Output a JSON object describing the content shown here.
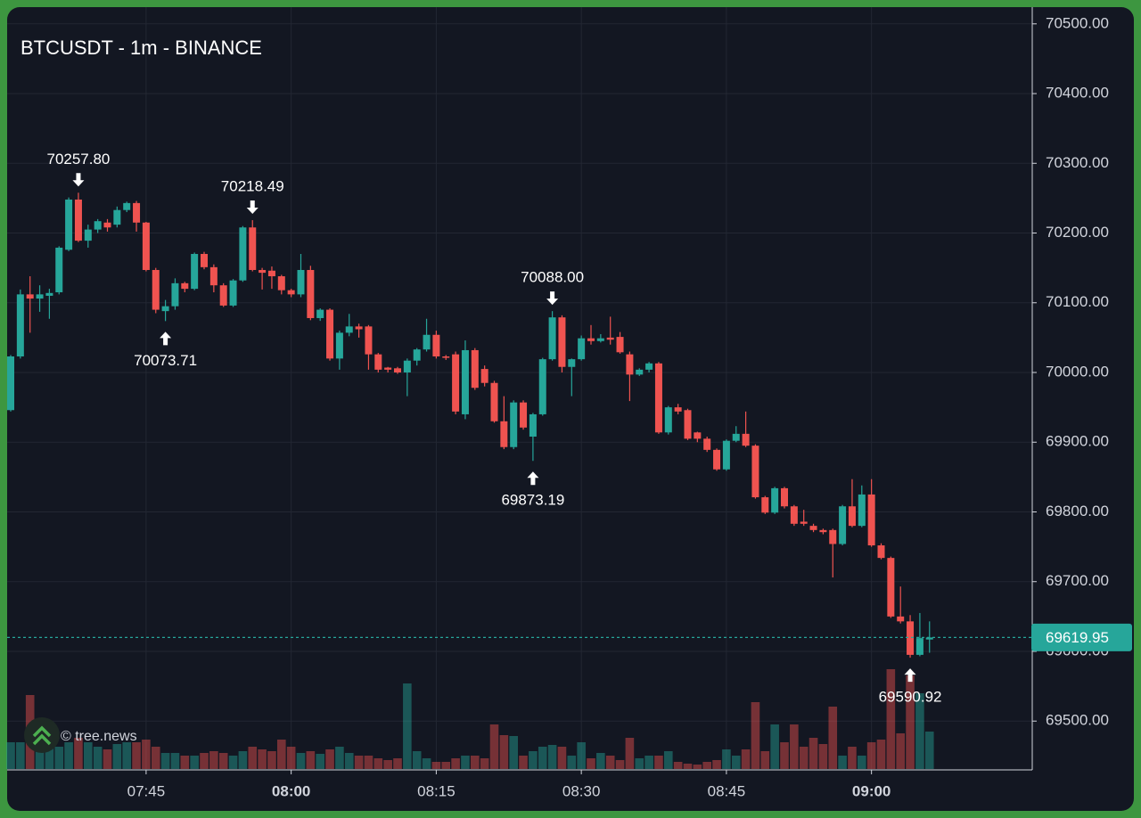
{
  "chart_data": {
    "type": "candlestick",
    "title": "BTCUSDT - 1m - BINANCE",
    "x": [
      "07:31",
      "07:32",
      "07:33",
      "07:34",
      "07:35",
      "07:36",
      "07:37",
      "07:38",
      "07:39",
      "07:40",
      "07:41",
      "07:42",
      "07:43",
      "07:44",
      "07:45",
      "07:46",
      "07:47",
      "07:48",
      "07:49",
      "07:50",
      "07:51",
      "07:52",
      "07:53",
      "07:54",
      "07:55",
      "07:56",
      "07:57",
      "07:58",
      "07:59",
      "08:00",
      "08:01",
      "08:02",
      "08:03",
      "08:04",
      "08:05",
      "08:06",
      "08:07",
      "08:08",
      "08:09",
      "08:10",
      "08:11",
      "08:12",
      "08:13",
      "08:14",
      "08:15",
      "08:16",
      "08:17",
      "08:18",
      "08:19",
      "08:20",
      "08:21",
      "08:22",
      "08:23",
      "08:24",
      "08:25",
      "08:26",
      "08:27",
      "08:28",
      "08:29",
      "08:30",
      "08:31",
      "08:32",
      "08:33",
      "08:34",
      "08:35",
      "08:36",
      "08:37",
      "08:38",
      "08:39",
      "08:40",
      "08:41",
      "08:42",
      "08:43",
      "08:44",
      "08:45",
      "08:46",
      "08:47",
      "08:48",
      "08:49",
      "08:50",
      "08:51",
      "08:52",
      "08:53",
      "08:54",
      "08:55",
      "08:56",
      "08:57",
      "08:58",
      "08:59",
      "09:00",
      "09:01",
      "09:02",
      "09:03",
      "09:04",
      "09:05",
      "09:06"
    ],
    "open": [
      69946,
      70023,
      70112,
      70106,
      70110,
      70115,
      70176,
      70248,
      70189,
      70205,
      70215,
      70212,
      70233,
      70243,
      70215,
      70147,
      70088,
      70095,
      70128,
      70120,
      70170,
      70151,
      70125,
      70096,
      70132,
      70208,
      70147,
      70146,
      70138,
      70118,
      70112,
      70147,
      70078,
      70090,
      70020,
      70057,
      70066,
      70066,
      70026,
      70007,
      70006,
      70000,
      70017,
      70033,
      70054,
      70023,
      70026,
      69940,
      70032,
      70005,
      69985,
      69930,
      69893,
      69957,
      69908,
      69940,
      70019,
      70079,
      70008,
      70019,
      70049,
      70045,
      70050,
      70051,
      70026,
      69997,
      70004,
      70013,
      69914,
      69950,
      69946,
      69914,
      69905,
      69889,
      69861,
      69902,
      69912,
      69895,
      69821,
      69799,
      69834,
      69808,
      69786,
      69780,
      69774,
      69774,
      69754,
      69808,
      69780,
      69825,
      69752,
      69734,
      69650,
      69643,
      69595,
      69617
    ],
    "high": [
      70025,
      70119,
      70138,
      70125,
      70120,
      70181,
      70251,
      70257.8,
      70212,
      70220,
      70220,
      70238,
      70245,
      70246,
      70216,
      70150,
      70104,
      70135,
      70130,
      70172,
      70173,
      70155,
      70128,
      70134,
      70210,
      70218.49,
      70150,
      70152,
      70140,
      70120,
      70170,
      70153,
      70092,
      70092,
      70060,
      70084,
      70070,
      70068,
      70028,
      70008,
      70008,
      70020,
      70035,
      70077,
      70060,
      70025,
      70030,
      70046,
      70035,
      70010,
      69988,
      69966,
      69960,
      69960,
      69942,
      70021,
      70088,
      70082,
      70020,
      70053,
      70068,
      70055,
      70080,
      70058,
      70030,
      70006,
      70015,
      70015,
      69952,
      69955,
      69948,
      69915,
      69908,
      69891,
      69904,
      69923,
      69944,
      69897,
      69823,
      69836,
      69836,
      69810,
      69803,
      69783,
      69776,
      69776,
      69810,
      69847,
      69838,
      69847,
      69755,
      69736,
      69693,
      69652,
      69655,
      69643
    ],
    "low": [
      69944,
      70020,
      70057,
      70087,
      70077,
      70112,
      70174,
      70187,
      70179,
      70200,
      70202,
      70208,
      70230,
      70202,
      70145,
      70085,
      70073.71,
      70090,
      70115,
      70118,
      70148,
      70115,
      70094,
      70094,
      70130,
      70145,
      70119,
      70120,
      70112,
      70108,
      70108,
      70075,
      70074,
      70017,
      70004,
      70052,
      70050,
      70004,
      70000,
      70000,
      69998,
      69966,
      70010,
      70030,
      70020,
      70018,
      69940,
      69933,
      69975,
      69980,
      69928,
      69890,
      69890,
      69918,
      69873.19,
      69938,
      70017,
      70000,
      69966,
      70017,
      70040,
      70043,
      70040,
      70027,
      69959,
      69995,
      70000,
      69912,
      69911,
      69940,
      69903,
      69900,
      69886,
      69859,
      69859,
      69900,
      69893,
      69819,
      69797,
      69797,
      69805,
      69780,
      69780,
      69771,
      69768,
      69706,
      69752,
      69778,
      69778,
      69750,
      69732,
      69648,
      69640,
      69590.92,
      69593,
      69598
    ],
    "close": [
      70023,
      70112,
      70106,
      70112,
      70114,
      70179,
      70248,
      70189,
      70205,
      70217,
      70208,
      70233,
      70243,
      70215,
      70147,
      70090,
      70095,
      70128,
      70120,
      70170,
      70151,
      70125,
      70096,
      70132,
      70208,
      70147,
      70143,
      70138,
      70118,
      70112,
      70147,
      70078,
      70090,
      70020,
      70057,
      70066,
      70062,
      70026,
      70004,
      70004,
      70000,
      70017,
      70033,
      70054,
      70023,
      70021,
      69944,
      70032,
      69978,
      69985,
      69930,
      69893,
      69957,
      69921,
      69940,
      70019,
      70079,
      70008,
      70019,
      70049,
      70045,
      70049,
      70047,
      70029,
      69997,
      70004,
      70013,
      69914,
      69950,
      69944,
      69905,
      69905,
      69889,
      69861,
      69902,
      69912,
      69895,
      69821,
      69799,
      69834,
      69808,
      69783,
      69783,
      69774,
      69771,
      69754,
      69808,
      69780,
      69825,
      69752,
      69734,
      69650,
      69643,
      69595,
      69619,
      69619.95
    ],
    "volume": [
      30,
      30,
      83,
      30,
      25,
      25,
      30,
      35,
      30,
      25,
      22,
      28,
      30,
      30,
      33,
      25,
      18,
      18,
      15,
      15,
      18,
      20,
      18,
      15,
      20,
      25,
      22,
      20,
      33,
      25,
      18,
      20,
      17,
      22,
      25,
      18,
      15,
      15,
      12,
      10,
      12,
      96,
      20,
      12,
      8,
      8,
      12,
      15,
      15,
      12,
      50,
      38,
      37,
      15,
      20,
      25,
      27,
      25,
      15,
      30,
      12,
      18,
      15,
      10,
      35,
      12,
      15,
      15,
      20,
      8,
      6,
      5,
      8,
      10,
      22,
      15,
      22,
      75,
      20,
      50,
      30,
      50,
      25,
      35,
      28,
      70,
      15,
      25,
      15,
      30,
      33,
      112,
      40,
      105,
      85,
      42
    ],
    "up_color": "#26a69a",
    "down_color": "#ef5350",
    "ylim": [
      69430,
      70524
    ],
    "yticks": [
      {
        "value": 69500,
        "label": "69500.00"
      },
      {
        "value": 69600,
        "label": "69600.00"
      },
      {
        "value": 69700,
        "label": "69700.00"
      },
      {
        "value": 69800,
        "label": "69800.00"
      },
      {
        "value": 69900,
        "label": "69900.00"
      },
      {
        "value": 70000,
        "label": "70000.00"
      },
      {
        "value": 70100,
        "label": "70100.00"
      },
      {
        "value": 70200,
        "label": "70200.00"
      },
      {
        "value": 70300,
        "label": "70300.00"
      },
      {
        "value": 70400,
        "label": "70400.00"
      },
      {
        "value": 70500,
        "label": "70500.00"
      }
    ],
    "xticks": [
      "07:45",
      "08:00",
      "08:15",
      "08:30",
      "08:45",
      "09:00"
    ],
    "grid": true,
    "last_price": {
      "value": 69619.95,
      "label": "69619.95"
    },
    "annotations": [
      {
        "x": "07:38",
        "kind": "high",
        "value": 70257.8,
        "label": "70257.80"
      },
      {
        "x": "07:47",
        "kind": "low",
        "value": 70073.71,
        "label": "70073.71"
      },
      {
        "x": "07:56",
        "kind": "high",
        "value": 70218.49,
        "label": "70218.49"
      },
      {
        "x": "08:27",
        "kind": "high",
        "value": 70088,
        "label": "70088.00"
      },
      {
        "x": "08:25",
        "kind": "low",
        "value": 69873.19,
        "label": "69873.19"
      },
      {
        "x": "09:04",
        "kind": "low",
        "value": 69590.92,
        "label": "69590.92"
      }
    ]
  },
  "watermark": "© tree.news"
}
